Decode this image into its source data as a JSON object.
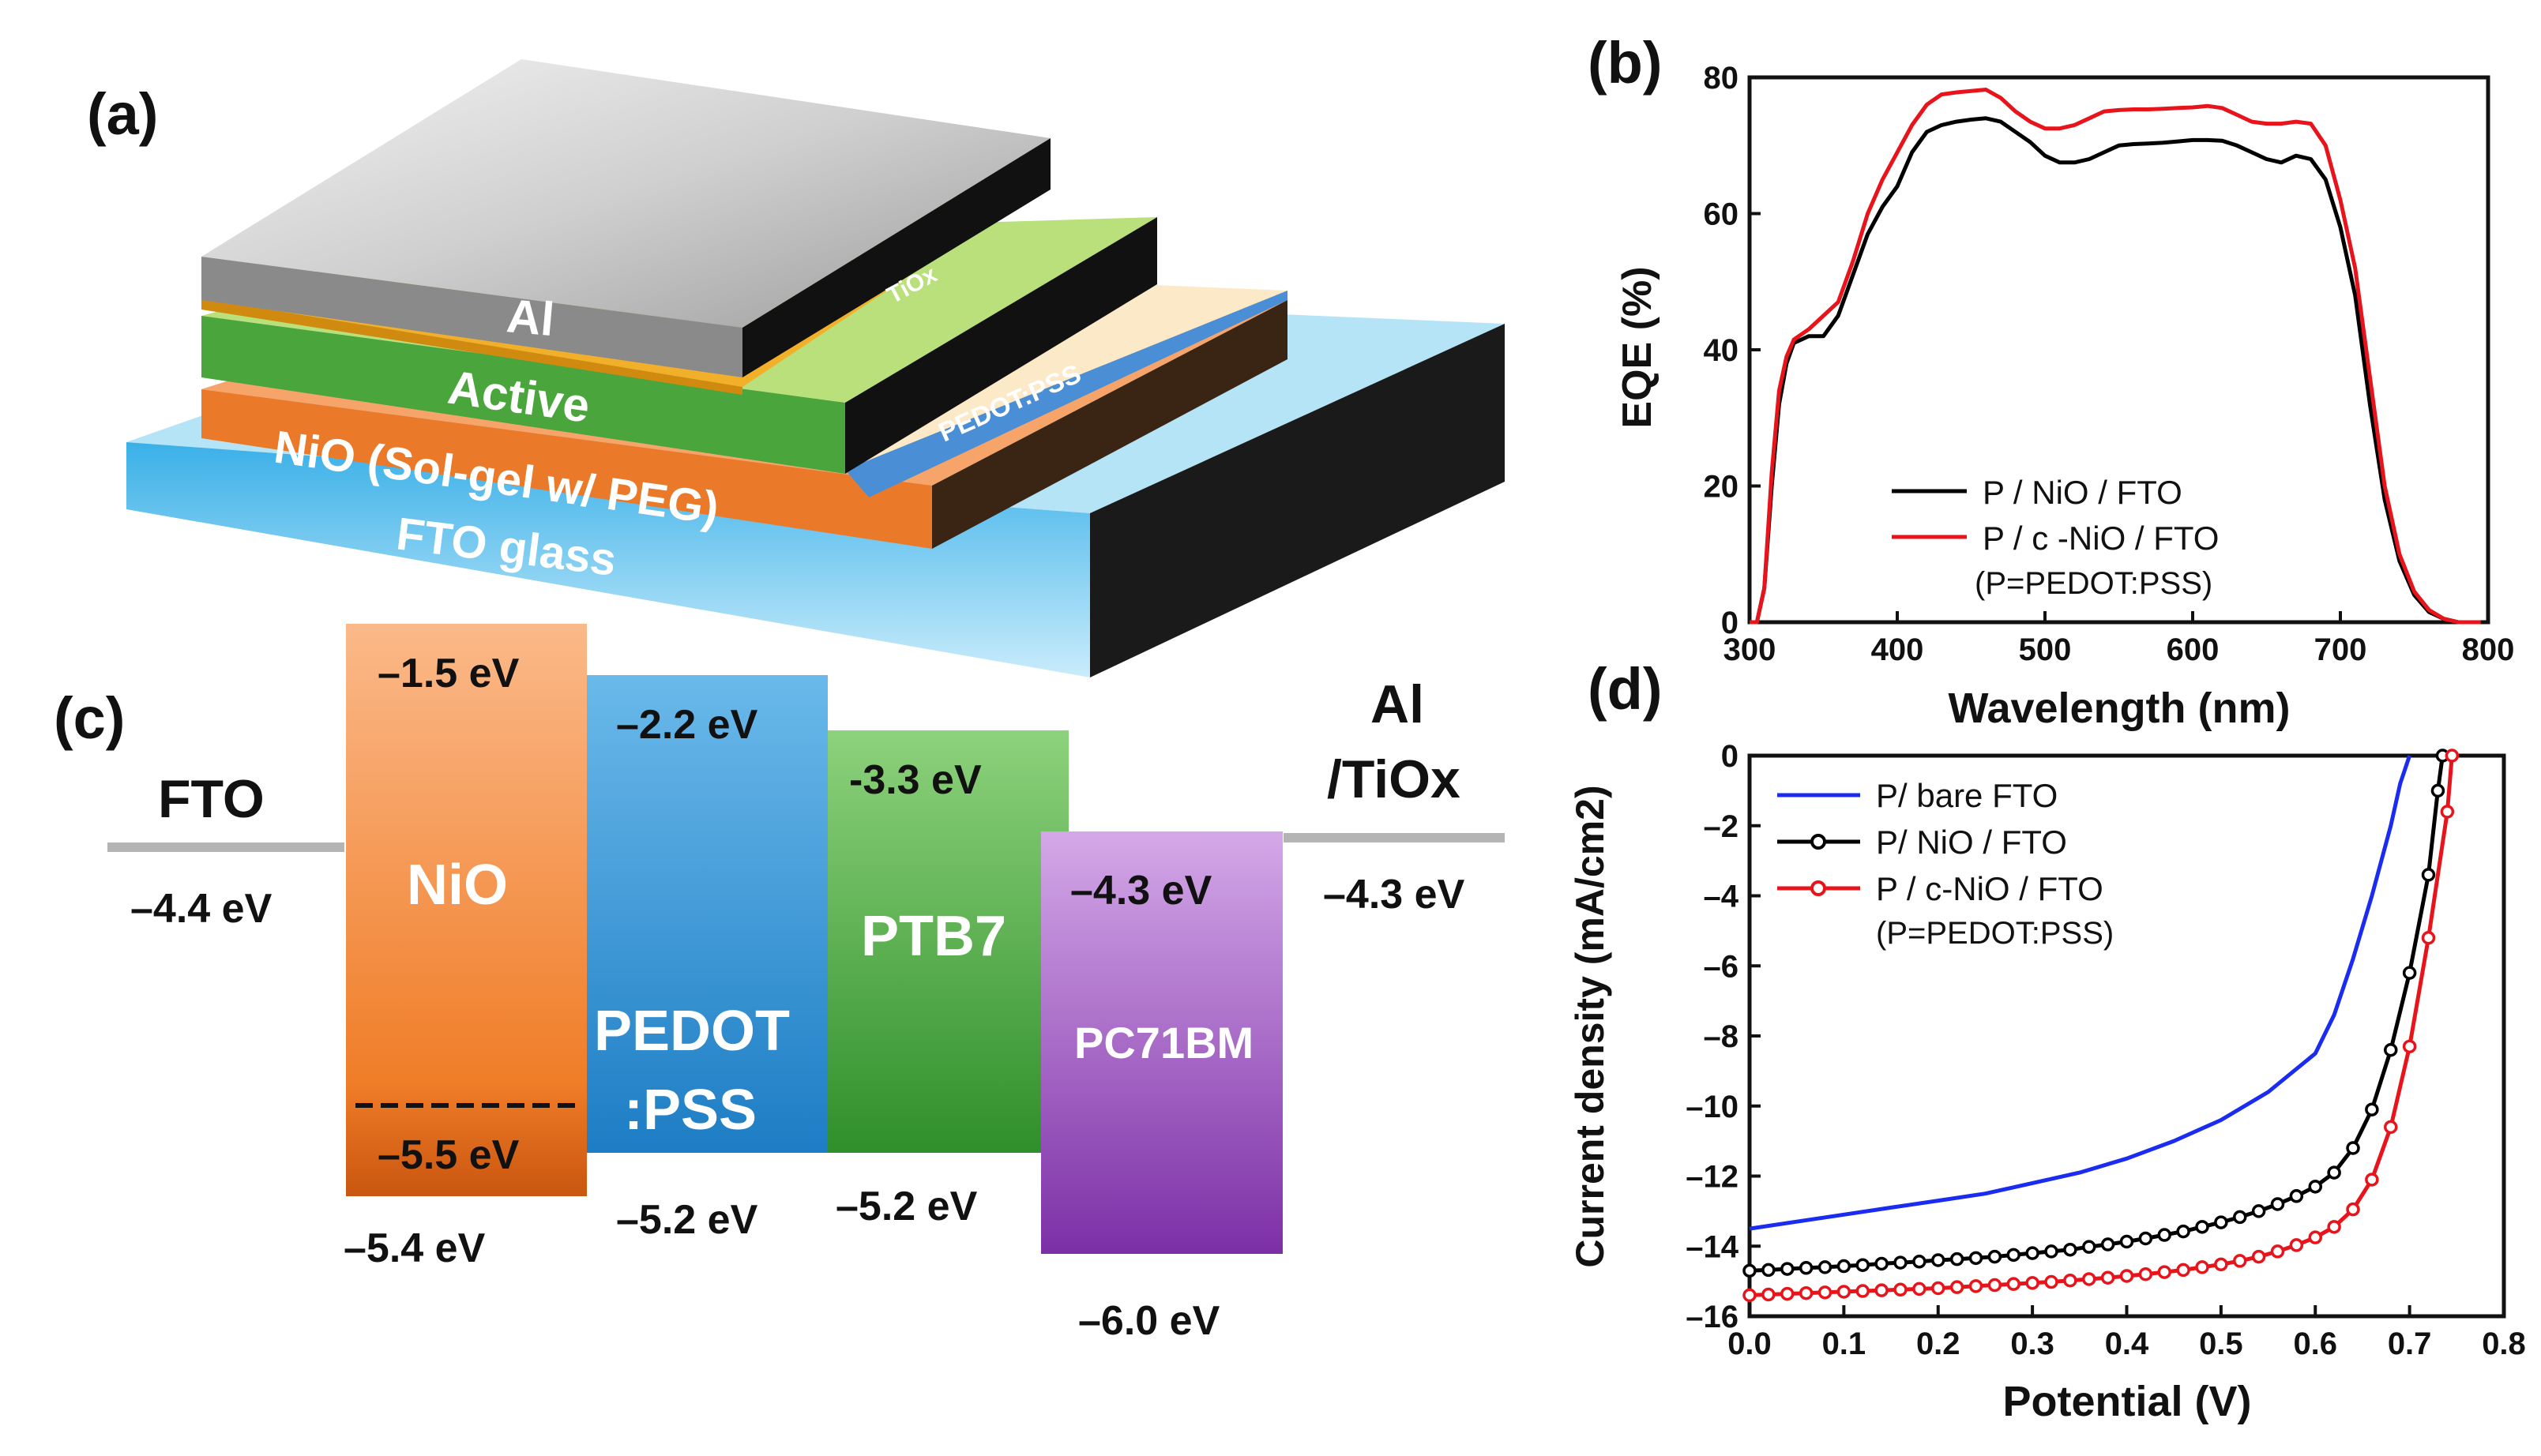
{
  "panel_labels": {
    "a": "(a)",
    "b": "(b)",
    "c": "(c)",
    "d": "(d)"
  },
  "device": {
    "layers": {
      "al": "Al",
      "tiox": "TiOx",
      "active": "Active",
      "pedot": "PEDOT:PSS",
      "nio": "NiO (Sol-gel w/ PEG)",
      "fto": "FTO glass"
    }
  },
  "energy": {
    "fto_label": "FTO",
    "fto_level": "–4.4 eV",
    "al_label_1": "Al",
    "al_label_2": "/TiOx",
    "al_level": "–4.3 eV",
    "nio_label": "NiO",
    "nio_top": "–1.5 eV",
    "nio_mid": "–5.5 eV",
    "nio_bottom": "–5.4 eV",
    "pedot_label_1": "PEDOT",
    "pedot_label_2": ":PSS",
    "pedot_top": "–2.2 eV",
    "pedot_bottom": "–5.2 eV",
    "ptb_label": "PTB7",
    "ptb_top": "-3.3 eV",
    "ptb_bottom": "–5.2 eV",
    "pcbm_label": "PC71BM",
    "pcbm_top": "–4.3 eV",
    "pcbm_bottom": "–6.0 eV"
  },
  "colors": {
    "black": "#000000",
    "red": "#e8141b",
    "blue": "#1a2cf0",
    "nio": "#f58a3a",
    "pedot": "#3d9ad8",
    "ptb": "#4fb043",
    "pcbm": "#a35bc6"
  },
  "chart_data": [
    {
      "type": "line",
      "title": "",
      "xlabel": "Wavelength (nm)",
      "ylabel": "EQE (%)",
      "xlim": [
        300,
        800
      ],
      "ylim": [
        0,
        80
      ],
      "xticks": [
        300,
        400,
        500,
        600,
        700,
        800
      ],
      "yticks": [
        0,
        20,
        40,
        60,
        80
      ],
      "legend": [
        "P / NiO / FTO",
        "P / c -NiO / FTO",
        "(P=PEDOT:PSS)"
      ],
      "series": [
        {
          "name": "P / NiO / FTO",
          "color": "#000000",
          "x": [
            300,
            305,
            310,
            315,
            320,
            325,
            330,
            340,
            350,
            360,
            370,
            380,
            390,
            400,
            410,
            420,
            430,
            440,
            450,
            460,
            470,
            480,
            490,
            500,
            510,
            520,
            530,
            540,
            550,
            560,
            570,
            580,
            590,
            600,
            610,
            620,
            630,
            640,
            650,
            660,
            670,
            680,
            690,
            700,
            710,
            720,
            730,
            740,
            750,
            760,
            770,
            780,
            790,
            795
          ],
          "y": [
            0,
            0,
            5,
            20,
            32,
            38,
            41,
            42,
            42,
            45,
            51,
            57,
            61,
            64,
            69,
            72,
            73,
            73.5,
            73.8,
            74,
            73.5,
            72,
            70.5,
            68.5,
            67.5,
            67.5,
            68,
            69,
            70,
            70.2,
            70.3,
            70.4,
            70.6,
            70.8,
            70.8,
            70.7,
            70,
            69,
            68,
            67.5,
            68.5,
            68,
            65,
            58,
            48,
            32,
            18,
            9,
            4,
            1.5,
            0.5,
            0,
            0,
            0
          ]
        },
        {
          "name": "P / c -NiO / FTO",
          "color": "#e8141b",
          "x": [
            300,
            305,
            310,
            315,
            320,
            325,
            330,
            340,
            350,
            360,
            370,
            380,
            390,
            400,
            410,
            420,
            430,
            440,
            450,
            460,
            470,
            480,
            490,
            500,
            510,
            520,
            530,
            540,
            550,
            560,
            570,
            580,
            590,
            600,
            610,
            620,
            630,
            640,
            650,
            660,
            670,
            680,
            690,
            700,
            710,
            720,
            730,
            740,
            750,
            760,
            770,
            780,
            790,
            795
          ],
          "y": [
            0,
            0,
            5,
            22,
            34,
            39,
            41.5,
            43,
            45,
            47,
            53,
            60,
            65,
            69,
            73,
            76,
            77.5,
            77.8,
            78,
            78.2,
            77,
            75,
            73.5,
            72.5,
            72.5,
            73,
            74,
            75,
            75.2,
            75.3,
            75.3,
            75.4,
            75.5,
            75.6,
            75.8,
            75.5,
            74.5,
            73.5,
            73.2,
            73.2,
            73.5,
            73.2,
            70,
            62,
            52,
            36,
            20,
            10,
            4.5,
            1.8,
            0.5,
            0,
            0,
            0
          ]
        }
      ]
    },
    {
      "type": "line",
      "title": "",
      "xlabel": "Potential (V)",
      "ylabel": "Current density (mA/cm2)",
      "xlim": [
        0.0,
        0.8
      ],
      "ylim": [
        -16,
        0
      ],
      "xticks": [
        0.0,
        0.1,
        0.2,
        0.3,
        0.4,
        0.5,
        0.6,
        0.7,
        0.8
      ],
      "yticks": [
        0,
        -2,
        -4,
        -6,
        -8,
        -10,
        -12,
        -14,
        -16
      ],
      "legend": [
        "P/ bare FTO",
        "P/ NiO / FTO",
        "P / c-NiO / FTO",
        "(P=PEDOT:PSS)"
      ],
      "series": [
        {
          "name": "P/ bare FTO",
          "color": "#1a2cf0",
          "markers": false,
          "x": [
            0,
            0.05,
            0.1,
            0.15,
            0.2,
            0.25,
            0.3,
            0.35,
            0.4,
            0.45,
            0.5,
            0.55,
            0.6,
            0.62,
            0.64,
            0.66,
            0.68,
            0.69,
            0.7
          ],
          "y": [
            -13.5,
            -13.3,
            -13.1,
            -12.9,
            -12.7,
            -12.5,
            -12.2,
            -11.9,
            -11.5,
            -11.0,
            -10.4,
            -9.6,
            -8.5,
            -7.4,
            -5.8,
            -4.0,
            -2.0,
            -0.8,
            0
          ]
        },
        {
          "name": "P/ NiO / FTO",
          "color": "#000000",
          "markers": true,
          "x": [
            0,
            0.02,
            0.04,
            0.06,
            0.08,
            0.1,
            0.12,
            0.14,
            0.16,
            0.18,
            0.2,
            0.22,
            0.24,
            0.26,
            0.28,
            0.3,
            0.32,
            0.34,
            0.36,
            0.38,
            0.4,
            0.42,
            0.44,
            0.46,
            0.48,
            0.5,
            0.52,
            0.54,
            0.56,
            0.58,
            0.6,
            0.62,
            0.64,
            0.66,
            0.68,
            0.7,
            0.72,
            0.73,
            0.735
          ],
          "y": [
            -14.7,
            -14.68,
            -14.65,
            -14.62,
            -14.6,
            -14.57,
            -14.54,
            -14.5,
            -14.47,
            -14.44,
            -14.4,
            -14.37,
            -14.34,
            -14.3,
            -14.25,
            -14.2,
            -14.15,
            -14.1,
            -14.02,
            -13.95,
            -13.87,
            -13.78,
            -13.68,
            -13.58,
            -13.45,
            -13.32,
            -13.17,
            -13.0,
            -12.8,
            -12.57,
            -12.3,
            -11.9,
            -11.2,
            -10.1,
            -8.4,
            -6.2,
            -3.4,
            -1.0,
            0
          ]
        },
        {
          "name": "P / c-NiO / FTO",
          "color": "#e8141b",
          "markers": true,
          "x": [
            0,
            0.02,
            0.04,
            0.06,
            0.08,
            0.1,
            0.12,
            0.14,
            0.16,
            0.18,
            0.2,
            0.22,
            0.24,
            0.26,
            0.28,
            0.3,
            0.32,
            0.34,
            0.36,
            0.38,
            0.4,
            0.42,
            0.44,
            0.46,
            0.48,
            0.5,
            0.52,
            0.54,
            0.56,
            0.58,
            0.6,
            0.62,
            0.64,
            0.66,
            0.68,
            0.7,
            0.72,
            0.74,
            0.745
          ],
          "y": [
            -15.4,
            -15.38,
            -15.36,
            -15.34,
            -15.32,
            -15.3,
            -15.28,
            -15.26,
            -15.24,
            -15.22,
            -15.2,
            -15.17,
            -15.14,
            -15.11,
            -15.08,
            -15.05,
            -15.02,
            -14.98,
            -14.94,
            -14.9,
            -14.85,
            -14.8,
            -14.74,
            -14.68,
            -14.6,
            -14.52,
            -14.42,
            -14.3,
            -14.15,
            -13.97,
            -13.75,
            -13.45,
            -12.95,
            -12.1,
            -10.6,
            -8.3,
            -5.2,
            -1.6,
            0
          ]
        }
      ]
    }
  ]
}
